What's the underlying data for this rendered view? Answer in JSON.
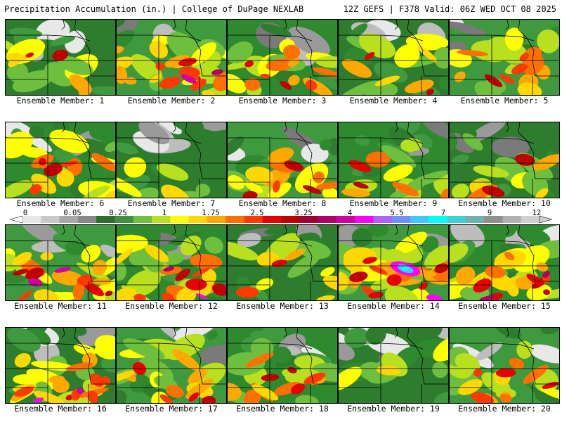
{
  "header": {
    "left_title": "Precipitation Accumulation (in.) | College of DuPage NEXLAB",
    "right_title": "12Z GEFS | F378 Valid: 06Z WED OCT 08 2025"
  },
  "legend": {
    "ticks": [
      "0",
      "0.05",
      "0.25",
      "1",
      "1.75",
      "2.5",
      "3.25",
      "4",
      "5.5",
      "7",
      "9",
      "12"
    ],
    "colors": [
      "#e6e6e6",
      "#c8c8c8",
      "#a8a8a8",
      "#888888",
      "#2e6b2e",
      "#3f8f3f",
      "#6fbf3f",
      "#b8e01e",
      "#ffff00",
      "#ffd800",
      "#ffa800",
      "#ff7000",
      "#ff3a00",
      "#e60000",
      "#c00000",
      "#a00030",
      "#b00068",
      "#d000a0",
      "#ff00ff",
      "#b060ff",
      "#7090ff",
      "#40c8ff",
      "#00ffff",
      "#40d0d0",
      "#70b0b0",
      "#909090",
      "#b0b0b0",
      "#d0d0d0"
    ]
  },
  "members": [
    {
      "label": "Ensemble Member: 1",
      "wet": 1
    },
    {
      "label": "Ensemble Member: 2",
      "wet": 3
    },
    {
      "label": "Ensemble Member: 3",
      "wet": 2
    },
    {
      "label": "Ensemble Member: 4",
      "wet": 1
    },
    {
      "label": "Ensemble Member: 5",
      "wet": 2
    },
    {
      "label": "Ensemble Member: 6",
      "wet": 2
    },
    {
      "label": "Ensemble Member: 7",
      "wet": 0
    },
    {
      "label": "Ensemble Member: 8",
      "wet": 2
    },
    {
      "label": "Ensemble Member: 9",
      "wet": 1
    },
    {
      "label": "Ensemble Member: 10",
      "wet": 1
    },
    {
      "label": "Ensemble Member: 11",
      "wet": 3
    },
    {
      "label": "Ensemble Member: 12",
      "wet": 3
    },
    {
      "label": "Ensemble Member: 13",
      "wet": 1
    },
    {
      "label": "Ensemble Member: 14",
      "wet": 4
    },
    {
      "label": "Ensemble Member: 15",
      "wet": 3
    },
    {
      "label": "Ensemble Member: 16",
      "wet": 3
    },
    {
      "label": "Ensemble Member: 17",
      "wet": 2
    },
    {
      "label": "Ensemble Member: 18",
      "wet": 2
    },
    {
      "label": "Ensemble Member: 19",
      "wet": 0
    },
    {
      "label": "Ensemble Member: 20",
      "wet": 2
    }
  ]
}
